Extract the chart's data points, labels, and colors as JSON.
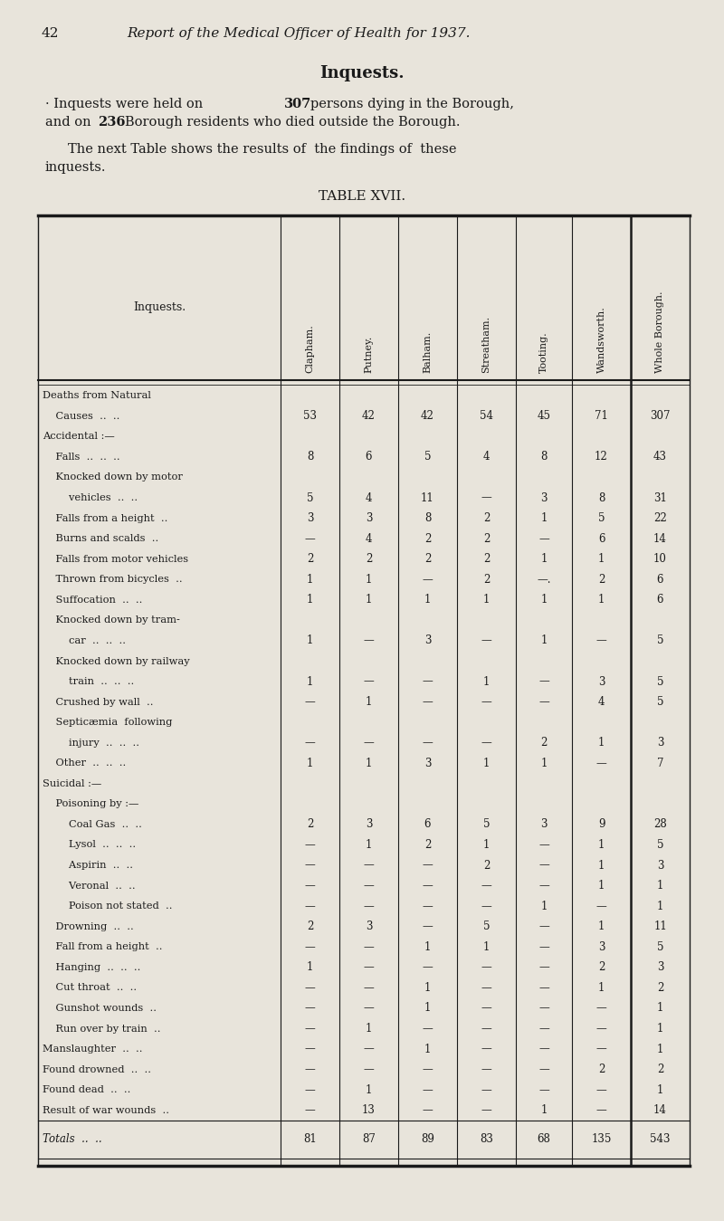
{
  "page_number": "42",
  "page_title": "Report of the Medical Officer of Health for 1937.",
  "section_title": "Inquests.",
  "para1a": "· Inquests were held on ",
  "para1b": "307",
  "para1c": " persons dying in the Borough,",
  "para1d": "and on ",
  "para1e": "236",
  "para1f": " Borough residents who died outside the Borough.",
  "para2": "The next Table shows the results of  the findings of  these",
  "para2b": "inquests.",
  "table_title": "TABLE XVII.",
  "col_headers": [
    "Inquests.",
    "Clapham.",
    "Putney.",
    "Balham.",
    "Streatham.",
    "Tooting.",
    "Wandsworth.",
    "Whole Borough."
  ],
  "rows": [
    [
      "Deaths from Natural",
      "",
      "",
      "",
      "",
      "",
      "",
      ""
    ],
    [
      "    Causes  ..  ..",
      "53",
      "42",
      "42",
      "54",
      "45",
      "71",
      "307"
    ],
    [
      "Accidental :—",
      "",
      "",
      "",
      "",
      "",
      "",
      ""
    ],
    [
      "    Falls  ..  ..  ..",
      "8",
      "6",
      "5",
      "4",
      "8",
      "12",
      "43"
    ],
    [
      "    Knocked down by motor",
      "",
      "",
      "",
      "",
      "",
      "",
      ""
    ],
    [
      "        vehicles  ..  ..",
      "5",
      "4",
      "11",
      "—",
      "3",
      "8",
      "31"
    ],
    [
      "    Falls from a height  ..",
      "3",
      "3",
      "8",
      "2",
      "1",
      "5",
      "22"
    ],
    [
      "    Burns and scalds  ..",
      "—",
      "4",
      "2",
      "2",
      "—",
      "6",
      "14"
    ],
    [
      "    Falls from motor vehicles",
      "2",
      "2",
      "2",
      "2",
      "1",
      "1",
      "10"
    ],
    [
      "    Thrown from bicycles  ..",
      "1",
      "1",
      "—",
      "2",
      "—.",
      "2",
      "6"
    ],
    [
      "    Suffocation  ..  ..",
      "1",
      "1",
      "1",
      "1",
      "1",
      "1",
      "6"
    ],
    [
      "    Knocked down by tram-",
      "",
      "",
      "",
      "",
      "",
      "",
      ""
    ],
    [
      "        car  ..  ..  ..",
      "1",
      "—",
      "3",
      "—",
      "1",
      "—",
      "5"
    ],
    [
      "    Knocked down by railway",
      "",
      "",
      "",
      "",
      "",
      "",
      ""
    ],
    [
      "        train  ..  ..  ..",
      "1",
      "—",
      "—",
      "1",
      "—",
      "3",
      "5"
    ],
    [
      "    Crushed by wall  ..",
      "—",
      "1",
      "—",
      "—",
      "—",
      "4",
      "5"
    ],
    [
      "    Septicæmia  following",
      "",
      "",
      "",
      "",
      "",
      "",
      ""
    ],
    [
      "        injury  ..  ..  ..",
      "—",
      "—",
      "—",
      "—",
      "2",
      "1",
      "3"
    ],
    [
      "    Other  ..  ..  ..",
      "1",
      "1",
      "3",
      "1",
      "1",
      "—",
      "7"
    ],
    [
      "Suicidal :—",
      "",
      "",
      "",
      "",
      "",
      "",
      ""
    ],
    [
      "    Poisoning by :—",
      "",
      "",
      "",
      "",
      "",
      "",
      ""
    ],
    [
      "        Coal Gas  ..  ..",
      "2",
      "3",
      "6",
      "5",
      "3",
      "9",
      "28"
    ],
    [
      "        Lysol  ..  ..  ..",
      "—",
      "1",
      "2",
      "1",
      "—",
      "1",
      "5"
    ],
    [
      "        Aspirin  ..  ..",
      "—",
      "—",
      "—",
      "2",
      "—",
      "1",
      "3"
    ],
    [
      "        Veronal  ..  ..",
      "—",
      "—",
      "—",
      "—",
      "—",
      "1",
      "1"
    ],
    [
      "        Poison not stated  ..",
      "—",
      "—",
      "—",
      "—",
      "1",
      "—",
      "1"
    ],
    [
      "    Drowning  ..  ..",
      "2",
      "3",
      "—",
      "5",
      "—",
      "1",
      "11"
    ],
    [
      "    Fall from a height  ..",
      "—",
      "—",
      "1",
      "1",
      "—",
      "3",
      "5"
    ],
    [
      "    Hanging  ..  ..  ..",
      "1",
      "—",
      "—",
      "—",
      "—",
      "2",
      "3"
    ],
    [
      "    Cut throat  ..  ..",
      "—",
      "—",
      "1",
      "—",
      "—",
      "1",
      "2"
    ],
    [
      "    Gunshot wounds  ..",
      "—",
      "—",
      "1",
      "—",
      "—",
      "—",
      "1"
    ],
    [
      "    Run over by train  ..",
      "—",
      "1",
      "—",
      "—",
      "—",
      "—",
      "1"
    ],
    [
      "Manslaughter  ..  ..",
      "—",
      "—",
      "1",
      "—",
      "—",
      "—",
      "1"
    ],
    [
      "Found drowned  ..  ..",
      "—",
      "—",
      "—",
      "—",
      "—",
      "2",
      "2"
    ],
    [
      "Found dead  ..  ..",
      "—",
      "1",
      "—",
      "—",
      "—",
      "—",
      "1"
    ],
    [
      "Result of war wounds  ..",
      "—",
      "13",
      "—",
      "—",
      "1",
      "—",
      "14"
    ]
  ],
  "totals_label": "Totals  ..  ..",
  "totals": [
    "81",
    "87",
    "89",
    "83",
    "68",
    "135",
    "543"
  ],
  "bg_color": "#e8e4db",
  "text_color": "#1a1a1a",
  "line_color": "#1a1a1a"
}
